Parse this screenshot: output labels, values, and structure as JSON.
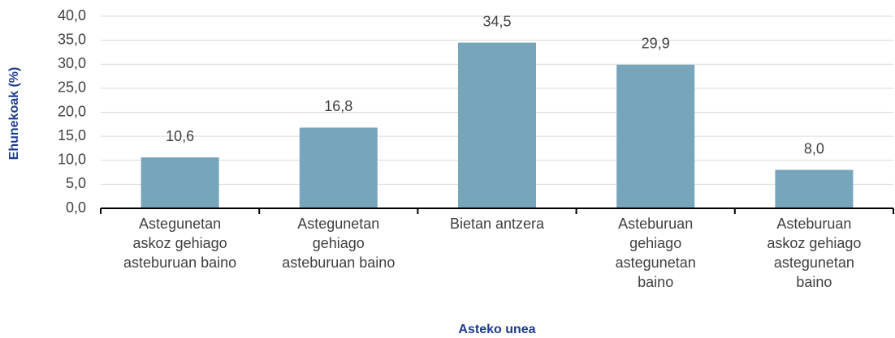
{
  "chart_data": {
    "type": "bar",
    "x_label": "Asteko unea",
    "y_label": "Ehunekoak (%)",
    "categories": [
      "Astegunetan\naskoz gehiago\nasteburuan baino",
      "Astegunetan\ngehiago\nasteburuan baino",
      "Bietan antzera",
      "Asteburuan\ngehiago\nastegunetan\nbaino",
      "Asteburuan\naskoz gehiago\nastegunetan\nbaino"
    ],
    "values": [
      10.6,
      16.8,
      34.5,
      29.9,
      8.0
    ],
    "value_labels": [
      "10,6",
      "16,8",
      "34,5",
      "29,9",
      "8,0"
    ],
    "color": "#77a5bb",
    "ylim": [
      0,
      40
    ],
    "yticks": [
      {
        "value": 0,
        "label": "0,0"
      },
      {
        "value": 5,
        "label": "5,0"
      },
      {
        "value": 10,
        "label": "10,0"
      },
      {
        "value": 15,
        "label": "15,0"
      },
      {
        "value": 20,
        "label": "20,0"
      },
      {
        "value": 25,
        "label": "25,0"
      },
      {
        "value": 30,
        "label": "30,0"
      },
      {
        "value": 35,
        "label": "35,0"
      },
      {
        "value": 40,
        "label": "40,0"
      }
    ],
    "grid": true
  }
}
